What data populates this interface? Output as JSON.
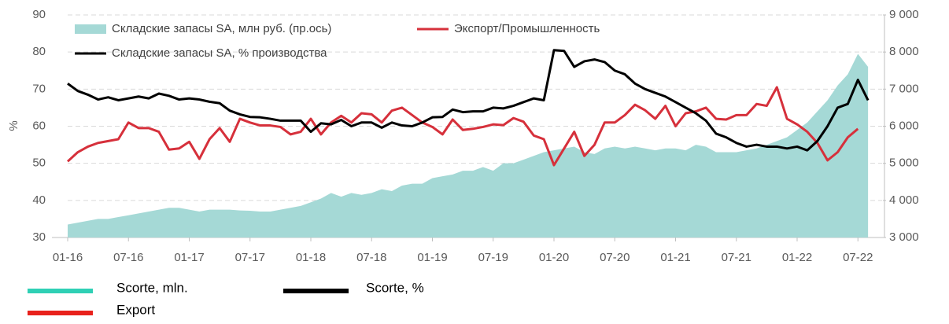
{
  "chart_data": {
    "type": "line",
    "y_label": "%",
    "categories": [
      "01-16",
      null,
      null,
      null,
      null,
      null,
      "07-16",
      null,
      null,
      null,
      null,
      null,
      "01-17",
      null,
      null,
      null,
      null,
      null,
      "07-17",
      null,
      null,
      null,
      null,
      null,
      "01-18",
      null,
      null,
      null,
      null,
      null,
      "07-18",
      null,
      null,
      null,
      null,
      null,
      "01-19",
      null,
      null,
      null,
      null,
      null,
      "07-19",
      null,
      null,
      null,
      null,
      null,
      "01-20",
      null,
      null,
      null,
      null,
      null,
      "07-20",
      null,
      null,
      null,
      null,
      null,
      "01-21",
      null,
      null,
      null,
      null,
      null,
      "07-21",
      null,
      null,
      null,
      null,
      null,
      "01-22",
      null,
      null,
      null,
      null,
      null,
      "07-22",
      null
    ],
    "ylim": [
      30,
      90
    ],
    "yticks": [
      30,
      40,
      50,
      60,
      70,
      80,
      90
    ],
    "y2lim": [
      3000,
      9000
    ],
    "y2ticks": [
      {
        "value": 3000,
        "label": "3 000"
      },
      {
        "value": 4000,
        "label": "4 000"
      },
      {
        "value": 5000,
        "label": "5 000"
      },
      {
        "value": 6000,
        "label": "6 000"
      },
      {
        "value": 7000,
        "label": "7 000"
      },
      {
        "value": 8000,
        "label": "8 000"
      },
      {
        "value": 9000,
        "label": "9 000"
      }
    ],
    "grid": true,
    "series": [
      {
        "name": "Складские запасы SA, млн руб. (пр.ось)",
        "type": "area",
        "axis": "y2",
        "color": "#a5d9d6",
        "values": [
          3350,
          3400,
          3450,
          3500,
          3500,
          3550,
          3600,
          3650,
          3700,
          3750,
          3800,
          3800,
          3750,
          3700,
          3750,
          3750,
          3750,
          3730,
          3720,
          3700,
          3700,
          3750,
          3800,
          3850,
          3950,
          4050,
          4200,
          4100,
          4200,
          4150,
          4200,
          4300,
          4250,
          4400,
          4450,
          4450,
          4600,
          4650,
          4700,
          4800,
          4800,
          4900,
          4800,
          5000,
          5000,
          5100,
          5200,
          5300,
          5350,
          5400,
          5450,
          5300,
          5250,
          5400,
          5450,
          5400,
          5450,
          5400,
          5350,
          5400,
          5400,
          5350,
          5500,
          5450,
          5300,
          5300,
          5300,
          5350,
          5400,
          5500,
          5600,
          5700,
          5900,
          6100,
          6400,
          6700,
          7100,
          7400,
          7950,
          7600
        ]
      },
      {
        "name": "Экспорт/Промышленность",
        "type": "line",
        "color": "#d6303b",
        "values": [
          50.5,
          53,
          54.5,
          55.5,
          56,
          56.5,
          61,
          59.5,
          59.5,
          58.5,
          53.7,
          54,
          55.8,
          51.2,
          56.5,
          59.5,
          55.8,
          62,
          61,
          60.2,
          60.2,
          59.8,
          57.8,
          58.5,
          62,
          57.8,
          61,
          62.8,
          61,
          63.5,
          63.2,
          61,
          64.2,
          65,
          63,
          61,
          59.8,
          57.8,
          61.8,
          59,
          59.3,
          59.8,
          60.5,
          60.3,
          62.2,
          61.2,
          57.5,
          56.5,
          49.5,
          54,
          58.5,
          52,
          55,
          61,
          61,
          63,
          65.8,
          64.3,
          62,
          65.5,
          60,
          63.5,
          64,
          65,
          62,
          61.8,
          63,
          63,
          66,
          65.5,
          70.5,
          62,
          60.5,
          58.5,
          55.5,
          50.8,
          53,
          57,
          59.3,
          null
        ]
      },
      {
        "name": "Складские запасы SA, % производства",
        "type": "line",
        "color": "#000000",
        "values": [
          71.5,
          69.5,
          68.5,
          67.2,
          67.8,
          67,
          67.5,
          68,
          67.5,
          68.8,
          68.2,
          67.2,
          67.5,
          67.2,
          66.6,
          66.2,
          64.2,
          63.2,
          62.5,
          62.4,
          62,
          61.5,
          61.5,
          61.5,
          58.5,
          60.8,
          60.5,
          61.7,
          60,
          61,
          61,
          59.6,
          61,
          60.2,
          60,
          61,
          62.4,
          62.5,
          64.5,
          63.8,
          64,
          64,
          65,
          64.8,
          65.5,
          66.5,
          67.5,
          67,
          80.5,
          80.3,
          76,
          77.5,
          78,
          77.3,
          75,
          74,
          71.5,
          70,
          69,
          68,
          66.5,
          65,
          63.5,
          61.5,
          58,
          57,
          55.5,
          54.5,
          55,
          54.5,
          54.5,
          54,
          54.5,
          53.5,
          56,
          60,
          65,
          66,
          72.5,
          67
        ]
      }
    ],
    "legend2": [
      {
        "name": "Scorte, mln.",
        "color": "#2fd0b5"
      },
      {
        "name": "Scorte, %",
        "color": "#000000"
      },
      {
        "name": "Export",
        "color": "#e8211c"
      }
    ]
  }
}
